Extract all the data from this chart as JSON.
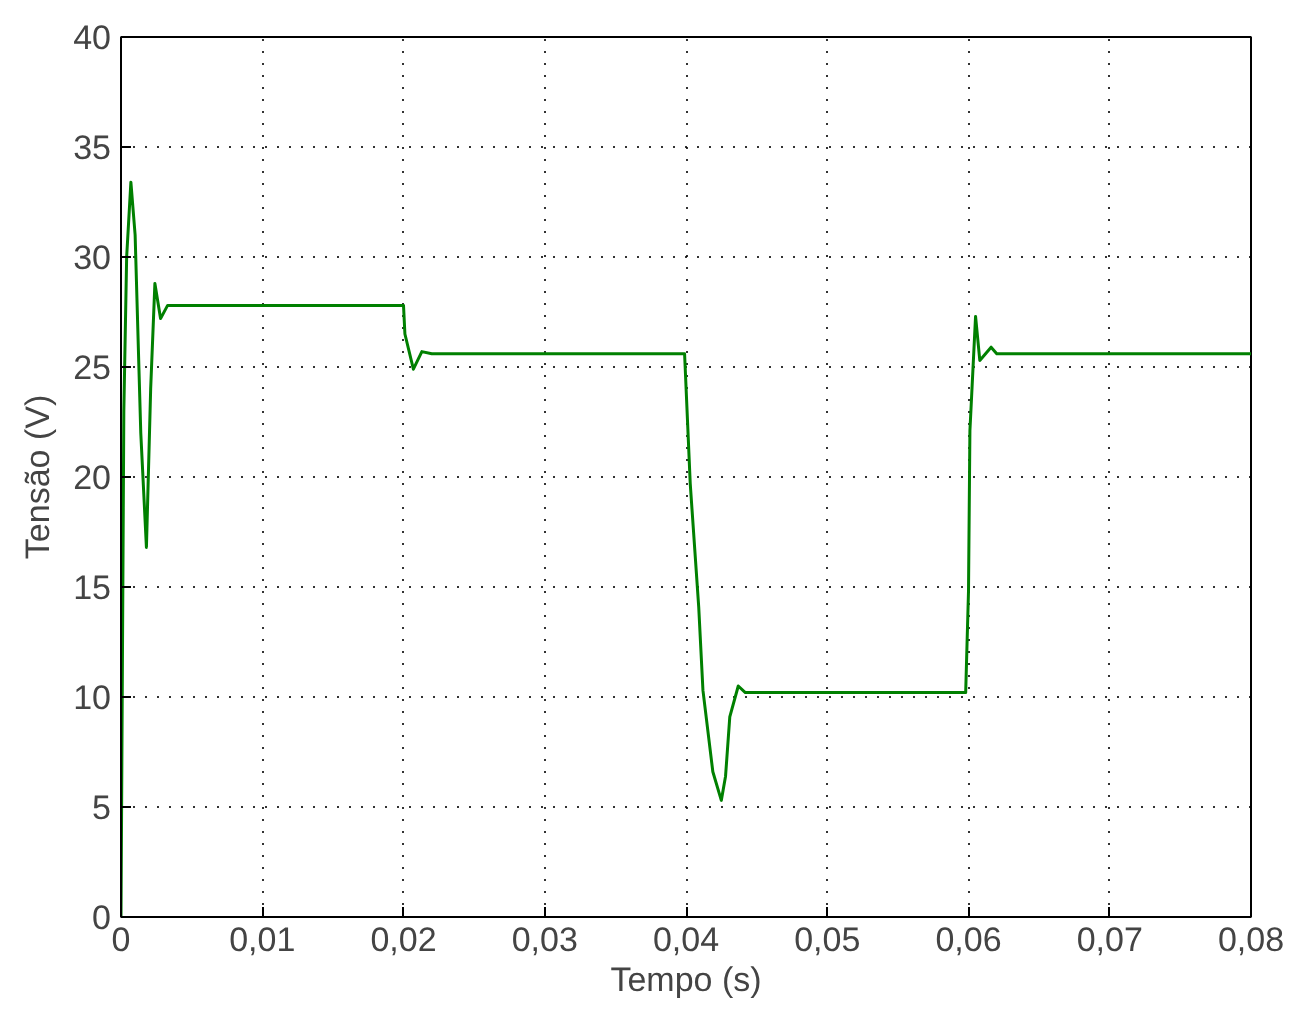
{
  "chart_data": {
    "type": "line",
    "xlabel": "Tempo (s)",
    "ylabel": "Tensão (V)",
    "x": [
      0,
      0.0002,
      0.0004,
      0.0007,
      0.001,
      0.0014,
      0.0018,
      0.0021,
      0.0024,
      0.0028,
      0.0033,
      0.02,
      0.0201,
      0.0207,
      0.0213,
      0.022,
      0.0399,
      0.0403,
      0.0409,
      0.0412,
      0.0419,
      0.0425,
      0.0428,
      0.0431,
      0.0437,
      0.0442,
      0.0598,
      0.06,
      0.0601,
      0.0605,
      0.0608,
      0.0616,
      0.062,
      0.08
    ],
    "series": [
      {
        "color": "#008000",
        "values": [
          0,
          23,
          30,
          33.4,
          31,
          22,
          16.8,
          24,
          28.8,
          27.2,
          27.8,
          27.8,
          26.5,
          24.9,
          25.7,
          25.6,
          25.6,
          19.7,
          14.1,
          10.3,
          6.6,
          5.3,
          6.4,
          9.1,
          10.5,
          10.2,
          10.2,
          14.8,
          22.1,
          27.3,
          25.3,
          25.9,
          25.6,
          25.6
        ]
      }
    ],
    "xlim": [
      0,
      0.08
    ],
    "ylim": [
      0,
      40
    ],
    "xticks": [
      0,
      {
        "value": 0.01,
        "label": "0,01"
      },
      {
        "value": 0.02,
        "label": "0,02"
      },
      {
        "value": 0.03,
        "label": "0,03"
      },
      {
        "value": 0.04,
        "label": "0,04"
      },
      {
        "value": 0.05,
        "label": "0,05"
      },
      {
        "value": 0.06,
        "label": "0,06"
      },
      {
        "value": 0.07,
        "label": "0,07"
      },
      {
        "value": 0.08,
        "label": "0,08"
      }
    ],
    "yticks": [
      0,
      5,
      10,
      15,
      20,
      25,
      30,
      35,
      40
    ],
    "grid": true,
    "line_style": "solid",
    "marker": "none"
  }
}
